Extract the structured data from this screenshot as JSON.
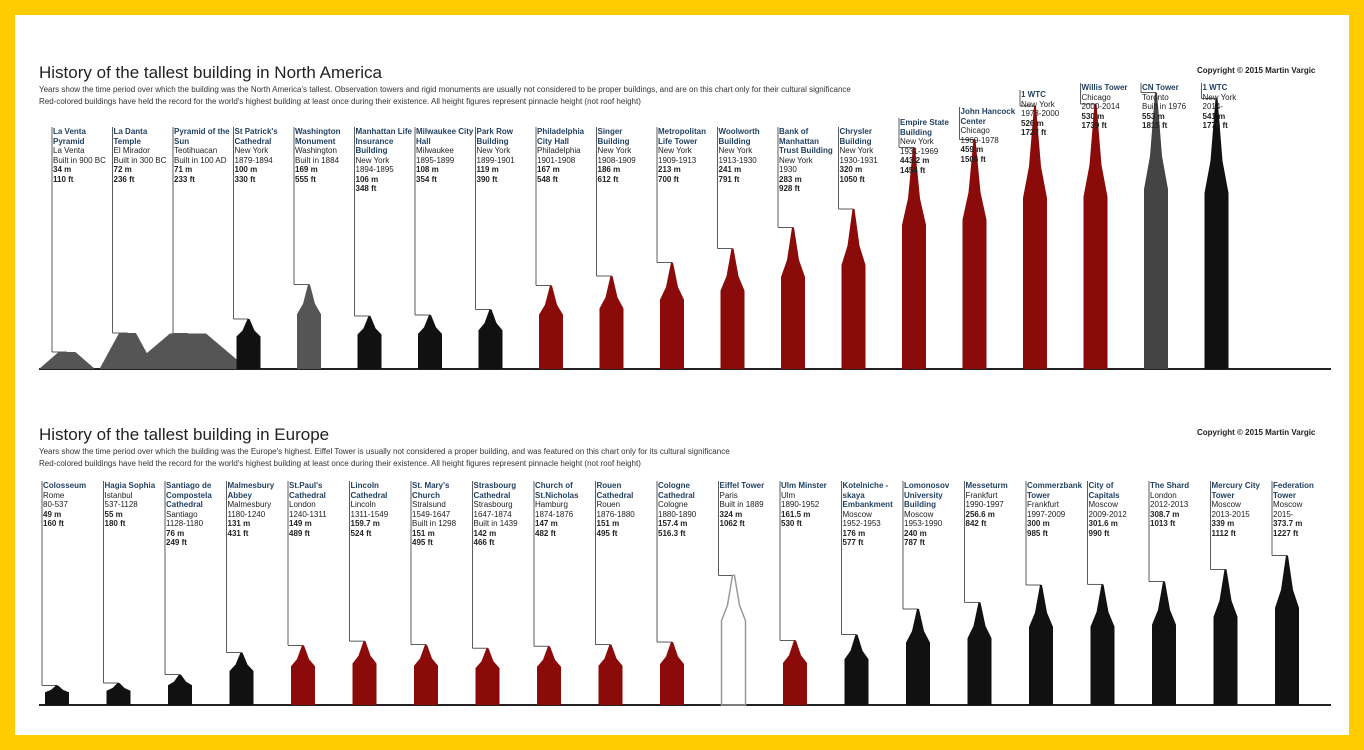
{
  "sections": [
    {
      "title": "History of the tallest building in North America",
      "subtitle": "Years show the time period over which the building was the North America's tallest. Observation towers and rigid monuments are usually not considered to be proper buildings, and are on this chart only for their cultural significance",
      "note": "Red-colored buildings have held the record for the world's highest building at least once during  their existence. All height figures represent pinnacle height (not roof height)",
      "copyright": "Copyright © 2015 Martin Vargic",
      "buildings": [
        {
          "name": "La Venta Pyramid",
          "info": [
            "La Venta",
            "Built in 900 BC"
          ],
          "m": "34 m",
          "ft": "110 ft",
          "color": "#555555"
        },
        {
          "name": "La Danta Temple",
          "info": [
            "El Mirador",
            "Built in 300 BC"
          ],
          "m": "72 m",
          "ft": "236 ft",
          "color": "#555555"
        },
        {
          "name": "Pyramid of the Sun",
          "info": [
            "Teotihuacan",
            "Built in 100 AD"
          ],
          "m": "71 m",
          "ft": "233 ft",
          "color": "#555555"
        },
        {
          "name": "St Patrick's Cathedral",
          "info": [
            "New York",
            "1879-1894"
          ],
          "m": "100 m",
          "ft": "330 ft",
          "color": "#111111"
        },
        {
          "name": "Washington Monument",
          "info": [
            "Washington",
            "Built in 1884"
          ],
          "m": "169 m",
          "ft": "555 ft",
          "color": "#555555"
        },
        {
          "name": "Manhattan Life Insurance Building",
          "info": [
            "New York",
            "1894-1895"
          ],
          "m": "106 m",
          "ft": "348 ft",
          "color": "#111111"
        },
        {
          "name": "Milwaukee City Hall",
          "info": [
            "Milwaukee",
            "1895-1899"
          ],
          "m": "108 m",
          "ft": "354 ft",
          "color": "#111111"
        },
        {
          "name": "Park Row Building",
          "info": [
            "New York",
            "1899-1901"
          ],
          "m": "119 m",
          "ft": "390 ft",
          "color": "#111111"
        },
        {
          "name": "Philadelphia City Hall",
          "info": [
            "Philadelphia",
            "1901-1908"
          ],
          "m": "167 m",
          "ft": "548 ft",
          "color": "#8b0a0a"
        },
        {
          "name": "Singer Building",
          "info": [
            "New York",
            "1908-1909"
          ],
          "m": "186 m",
          "ft": "612 ft",
          "color": "#8b0a0a"
        },
        {
          "name": "Metropolitan Life Tower",
          "info": [
            "New York",
            "1909-1913"
          ],
          "m": "213 m",
          "ft": "700 ft",
          "color": "#8b0a0a"
        },
        {
          "name": "Woolworth Building",
          "info": [
            "New York",
            "1913-1930"
          ],
          "m": "241 m",
          "ft": "791 ft",
          "color": "#8b0a0a"
        },
        {
          "name": "Bank of Manhattan Trust Building",
          "info": [
            "New York",
            "1930"
          ],
          "m": "283 m",
          "ft": "928 ft",
          "color": "#8b0a0a"
        },
        {
          "name": "Chrysler Building",
          "info": [
            "New York",
            "1930-1931"
          ],
          "m": "320 m",
          "ft": "1050 ft",
          "color": "#8b0a0a"
        },
        {
          "name": "Empire State Building",
          "info": [
            "New York",
            "1931-1969"
          ],
          "m": "443.2 m",
          "ft": "1454 ft",
          "color": "#8b0a0a"
        },
        {
          "name": "John Hancock Center",
          "info": [
            "Chicago",
            "1969-1978"
          ],
          "m": "459 m",
          "ft": "1506 ft",
          "color": "#8b0a0a"
        },
        {
          "name": "1 WTC",
          "info": [
            "New York",
            "1978-2000"
          ],
          "m": "526 m",
          "ft": "1727 ft",
          "color": "#8b0a0a"
        },
        {
          "name": "Willis Tower",
          "info": [
            "Chicago",
            "2000-2014"
          ],
          "m": "530 m",
          "ft": "1739 ft",
          "color": "#8b0a0a"
        },
        {
          "name": "CN Tower",
          "info": [
            "Toronto",
            "Built in 1976"
          ],
          "m": "553 m",
          "ft": "1815 ft",
          "color": "#444444"
        },
        {
          "name": "1 WTC",
          "info": [
            "New York",
            "2014-"
          ],
          "m": "541 m",
          "ft": "1776 ft",
          "color": "#111111"
        }
      ]
    },
    {
      "title": "History of the tallest building in Europe",
      "subtitle": "Years show the time period over which the building was the Europe's highest. Eiffel Tower is usually not considered a proper building, and was featured on this chart only for its cultural significance",
      "note": "Red-colored buildings have held the record for the world's highest building at least once during  their existence. All height figures represent pinnacle height (not roof height)",
      "copyright": "Copyright © 2015 Martin Vargic",
      "buildings": [
        {
          "name": "Colosseum",
          "info": [
            "Rome",
            "80-537"
          ],
          "m": "49 m",
          "ft": "160 ft",
          "color": "#111111"
        },
        {
          "name": "Hagia Sophia",
          "info": [
            "Istanbul",
            "537-1128"
          ],
          "m": "55 m",
          "ft": "180 ft",
          "color": "#111111"
        },
        {
          "name": "Santiago de Compostela Cathedral",
          "info": [
            "Santiago",
            "1128-1180"
          ],
          "m": "76 m",
          "ft": "249 ft",
          "color": "#111111"
        },
        {
          "name": "Malmesbury Abbey",
          "info": [
            "Malmesbury",
            "1180-1240"
          ],
          "m": "131 m",
          "ft": "431 ft",
          "color": "#111111"
        },
        {
          "name": "St.Paul's Cathedral",
          "info": [
            "London",
            "1240-1311"
          ],
          "m": "149 m",
          "ft": "489 ft",
          "color": "#8b0a0a"
        },
        {
          "name": "Lincoln Cathedral",
          "info": [
            "Lincoln",
            "1311-1549"
          ],
          "m": "159.7 m",
          "ft": "524 ft",
          "color": "#8b0a0a"
        },
        {
          "name": "St. Mary's Church",
          "info": [
            "Stralsund",
            "1549-1647",
            "Built in 1298"
          ],
          "m": "151 m",
          "ft": "495 ft",
          "color": "#8b0a0a"
        },
        {
          "name": "Strasbourg Cathedral",
          "info": [
            "Strasbourg",
            "1647-1874",
            "Built in 1439"
          ],
          "m": "142 m",
          "ft": "466 ft",
          "color": "#8b0a0a"
        },
        {
          "name": "Church of St.Nicholas",
          "info": [
            "Hamburg",
            "1874-1876"
          ],
          "m": "147 m",
          "ft": "482 ft",
          "color": "#8b0a0a"
        },
        {
          "name": "Rouen Cathedral",
          "info": [
            "Rouen",
            "1876-1880"
          ],
          "m": "151 m",
          "ft": "495 ft",
          "color": "#8b0a0a"
        },
        {
          "name": "Cologne Cathedral",
          "info": [
            "Cologne",
            "1880-1890"
          ],
          "m": "157.4 m",
          "ft": "516.3 ft",
          "color": "#8b0a0a"
        },
        {
          "name": "Eiffel Tower",
          "info": [
            "Paris",
            "Built in 1889"
          ],
          "m": "324 m",
          "ft": "1062 ft",
          "color": "#999999"
        },
        {
          "name": "Ulm Minster",
          "info": [
            "Ulm",
            "1890-1952"
          ],
          "m": "161.5 m",
          "ft": "530 ft",
          "color": "#8b0a0a"
        },
        {
          "name": "Kotelniche -skaya Embankment",
          "info": [
            "Moscow",
            "1952-1953"
          ],
          "m": "176 m",
          "ft": "577 ft",
          "color": "#111111"
        },
        {
          "name": "Lomonosov University Building",
          "info": [
            "Moscow",
            "1953-1990"
          ],
          "m": "240 m",
          "ft": "787 ft",
          "color": "#111111"
        },
        {
          "name": "Messeturm",
          "info": [
            "Frankfurt",
            "1990-1997"
          ],
          "m": "256.6 m",
          "ft": "842 ft",
          "color": "#111111"
        },
        {
          "name": "Commerzbank Tower",
          "info": [
            "Frankfurt",
            "1997-2009"
          ],
          "m": "300 m",
          "ft": "985 ft",
          "color": "#111111"
        },
        {
          "name": "City of Capitals",
          "info": [
            "Moscow",
            "2009-2012"
          ],
          "m": "301.6 m",
          "ft": "990 ft",
          "color": "#111111"
        },
        {
          "name": "The Shard",
          "info": [
            "London",
            "2012-2013"
          ],
          "m": "308.7 m",
          "ft": "1013 ft",
          "color": "#111111"
        },
        {
          "name": "Mercury City Tower",
          "info": [
            "Moscow",
            "2013-2015"
          ],
          "m": "339 m",
          "ft": "1112 ft",
          "color": "#111111"
        },
        {
          "name": "Federation Tower",
          "info": [
            "Moscow",
            "2015-"
          ],
          "m": "373.7 m",
          "ft": "1227 ft",
          "color": "#111111"
        }
      ]
    }
  ]
}
